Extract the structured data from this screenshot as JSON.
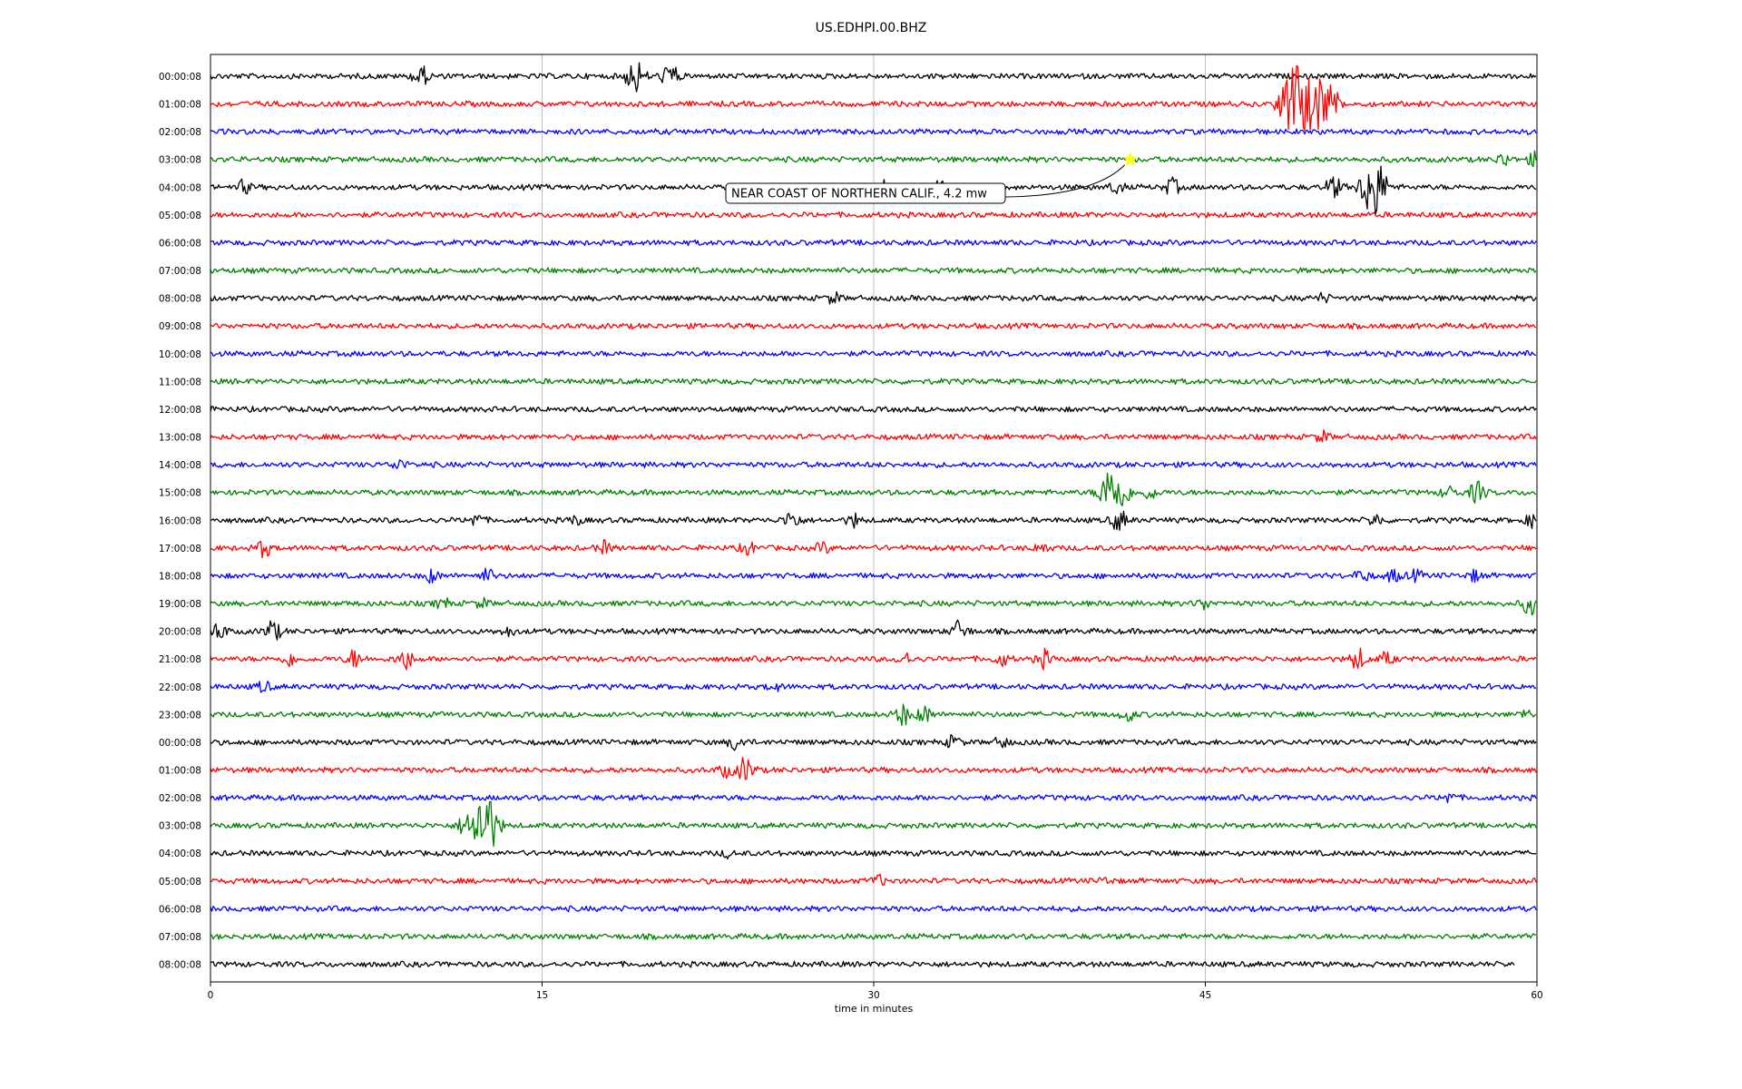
{
  "chart_data": {
    "type": "line",
    "title": "US.EDHPI.00.BHZ",
    "xlabel": "time in minutes",
    "ylabel": "",
    "xlim": [
      0,
      60
    ],
    "x_ticks": [
      0,
      15,
      30,
      45,
      60
    ],
    "x_tick_labels": [
      "0",
      "15",
      "30",
      "45",
      "60"
    ],
    "grid": "vertical",
    "rows": [
      {
        "label": "00:00:08",
        "color": "#000000",
        "bursts": [
          [
            9.5,
            1.0
          ],
          [
            19.2,
            1.6
          ],
          [
            20.8,
            1.2
          ]
        ]
      },
      {
        "label": "01:00:08",
        "color": "#ff0000",
        "bursts": [
          [
            48.9,
            3.2
          ],
          [
            49.4,
            2.0
          ],
          [
            50.2,
            2.6
          ],
          [
            50.8,
            1.0
          ]
        ]
      },
      {
        "label": "02:00:08",
        "color": "#0000ff",
        "bursts": []
      },
      {
        "label": "03:00:08",
        "color": "#008000",
        "bursts": [
          [
            58.5,
            0.6
          ],
          [
            59.9,
            0.6
          ]
        ]
      },
      {
        "label": "04:00:08",
        "color": "#000000",
        "bursts": [
          [
            1.5,
            0.6
          ],
          [
            30.5,
            0.8
          ],
          [
            33.0,
            0.6
          ],
          [
            41.0,
            0.6
          ],
          [
            43.5,
            0.8
          ],
          [
            50.8,
            1.0
          ],
          [
            52.6,
            3.2
          ]
        ]
      },
      {
        "label": "05:00:08",
        "color": "#ff0000",
        "bursts": []
      },
      {
        "label": "06:00:08",
        "color": "#0000ff",
        "bursts": []
      },
      {
        "label": "07:00:08",
        "color": "#008000",
        "bursts": []
      },
      {
        "label": "08:00:08",
        "color": "#000000",
        "bursts": [
          [
            28.2,
            0.5
          ],
          [
            50.3,
            0.4
          ]
        ]
      },
      {
        "label": "09:00:08",
        "color": "#ff0000",
        "bursts": []
      },
      {
        "label": "10:00:08",
        "color": "#0000ff",
        "bursts": []
      },
      {
        "label": "11:00:08",
        "color": "#008000",
        "bursts": []
      },
      {
        "label": "12:00:08",
        "color": "#000000",
        "bursts": []
      },
      {
        "label": "13:00:08",
        "color": "#ff0000",
        "bursts": [
          [
            50.3,
            0.5
          ]
        ]
      },
      {
        "label": "14:00:08",
        "color": "#0000ff",
        "bursts": [
          [
            8.5,
            0.5
          ]
        ]
      },
      {
        "label": "15:00:08",
        "color": "#008000",
        "bursts": [
          [
            40.7,
            2.4
          ],
          [
            41.3,
            1.0
          ],
          [
            42.5,
            0.6
          ],
          [
            56.0,
            0.6
          ],
          [
            57.3,
            1.0
          ]
        ]
      },
      {
        "label": "16:00:08",
        "color": "#000000",
        "bursts": [
          [
            12.0,
            0.6
          ],
          [
            16.5,
            0.4
          ],
          [
            26.3,
            0.9
          ],
          [
            29.1,
            0.6
          ],
          [
            41.1,
            1.0
          ],
          [
            52.7,
            0.6
          ],
          [
            59.8,
            0.6
          ]
        ]
      },
      {
        "label": "17:00:08",
        "color": "#ff0000",
        "bursts": [
          [
            2.4,
            0.8
          ],
          [
            17.8,
            0.6
          ],
          [
            24.3,
            0.6
          ],
          [
            27.7,
            0.5
          ],
          [
            37.6,
            0.5
          ]
        ]
      },
      {
        "label": "18:00:08",
        "color": "#0000ff",
        "bursts": [
          [
            10.0,
            0.6
          ],
          [
            12.5,
            0.6
          ],
          [
            52.1,
            0.6
          ],
          [
            53.5,
            0.6
          ],
          [
            54.5,
            0.5
          ],
          [
            57.2,
            0.5
          ]
        ]
      },
      {
        "label": "19:00:08",
        "color": "#008000",
        "bursts": [
          [
            10.5,
            0.5
          ],
          [
            12.3,
            0.4
          ],
          [
            44.9,
            0.5
          ],
          [
            59.7,
            1.0
          ]
        ]
      },
      {
        "label": "20:00:08",
        "color": "#000000",
        "bursts": [
          [
            0.4,
            0.8
          ],
          [
            2.8,
            1.0
          ],
          [
            13.5,
            0.4
          ],
          [
            33.9,
            1.0
          ]
        ]
      },
      {
        "label": "21:00:08",
        "color": "#ff0000",
        "bursts": [
          [
            3.6,
            0.6
          ],
          [
            6.5,
            0.8
          ],
          [
            8.8,
            1.0
          ],
          [
            31.4,
            0.6
          ],
          [
            35.8,
            0.6
          ],
          [
            37.7,
            0.8
          ],
          [
            51.9,
            1.0
          ],
          [
            53.2,
            0.6
          ]
        ]
      },
      {
        "label": "22:00:08",
        "color": "#0000ff",
        "bursts": [
          [
            2.4,
            0.5
          ],
          [
            25.5,
            0.4
          ]
        ]
      },
      {
        "label": "23:00:08",
        "color": "#008000",
        "bursts": [
          [
            31.3,
            1.0
          ],
          [
            32.3,
            0.8
          ],
          [
            41.5,
            0.6
          ],
          [
            59.5,
            0.4
          ]
        ]
      },
      {
        "label": "00:00:08",
        "color": "#000000",
        "bursts": [
          [
            23.8,
            0.8
          ],
          [
            33.6,
            0.6
          ],
          [
            35.8,
            0.5
          ]
        ]
      },
      {
        "label": "01:00:08",
        "color": "#ff0000",
        "bursts": [
          [
            23.3,
            0.6
          ],
          [
            24.2,
            1.2
          ]
        ]
      },
      {
        "label": "02:00:08",
        "color": "#0000ff",
        "bursts": [
          [
            56.0,
            0.5
          ]
        ]
      },
      {
        "label": "03:00:08",
        "color": "#008000",
        "bursts": [
          [
            11.5,
            0.8
          ],
          [
            12.4,
            3.4
          ]
        ]
      },
      {
        "label": "04:00:08",
        "color": "#000000",
        "bursts": [
          [
            23.4,
            0.3
          ]
        ]
      },
      {
        "label": "05:00:08",
        "color": "#ff0000",
        "bursts": [
          [
            30.2,
            0.5
          ],
          [
            40.5,
            0.3
          ]
        ]
      },
      {
        "label": "06:00:08",
        "color": "#0000ff",
        "bursts": []
      },
      {
        "label": "07:00:08",
        "color": "#008000",
        "bursts": []
      },
      {
        "label": "08:00:08",
        "color": "#000000",
        "bursts": [],
        "end": 59.0
      }
    ],
    "annotations": [
      {
        "text": "NEAR COAST OF NORTHERN CALIF., 4.2 mw",
        "row": 3,
        "x": 41.6,
        "marker": "star",
        "marker_color": "#ffff00"
      }
    ]
  }
}
